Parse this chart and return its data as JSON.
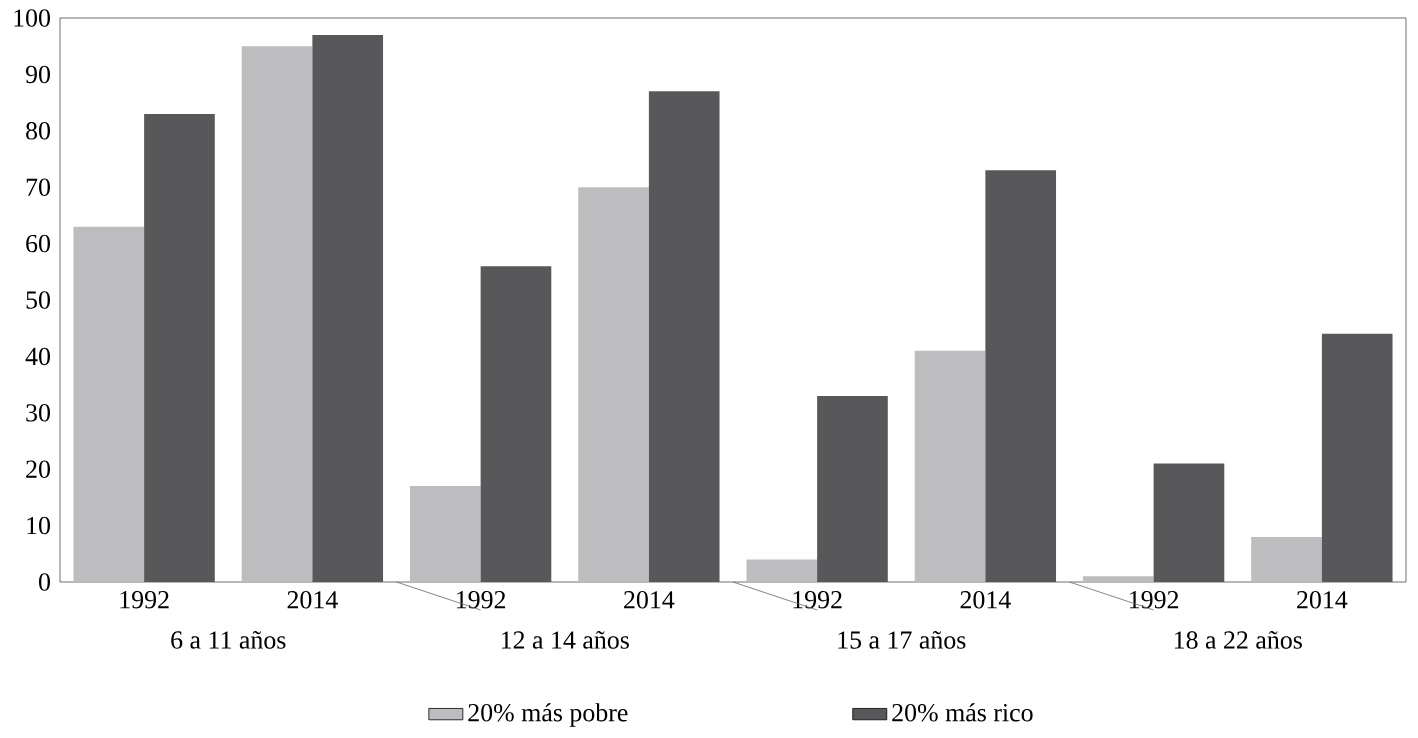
{
  "chart_data": {
    "type": "bar",
    "categories": [
      "1992",
      "2014",
      "1992",
      "2014",
      "1992",
      "2014",
      "1992",
      "2014"
    ],
    "series": [
      {
        "name": "20% más pobre",
        "color": "#bdbdbf",
        "values": [
          63,
          95,
          17,
          70,
          4,
          41,
          1,
          8
        ]
      },
      {
        "name": "20% más rico",
        "color": "#58585a",
        "values": [
          83,
          97,
          56,
          87,
          33,
          73,
          21,
          44
        ]
      }
    ],
    "annotations": [
      "6 a 11 años",
      "12 a 14 años",
      "15 a 17 años",
      "18 a 22 años"
    ],
    "ylim": [
      0,
      100
    ],
    "yticks": [
      0,
      10,
      20,
      30,
      40,
      50,
      60,
      70,
      80,
      90,
      100
    ],
    "grid": false,
    "legend": "bottom"
  }
}
